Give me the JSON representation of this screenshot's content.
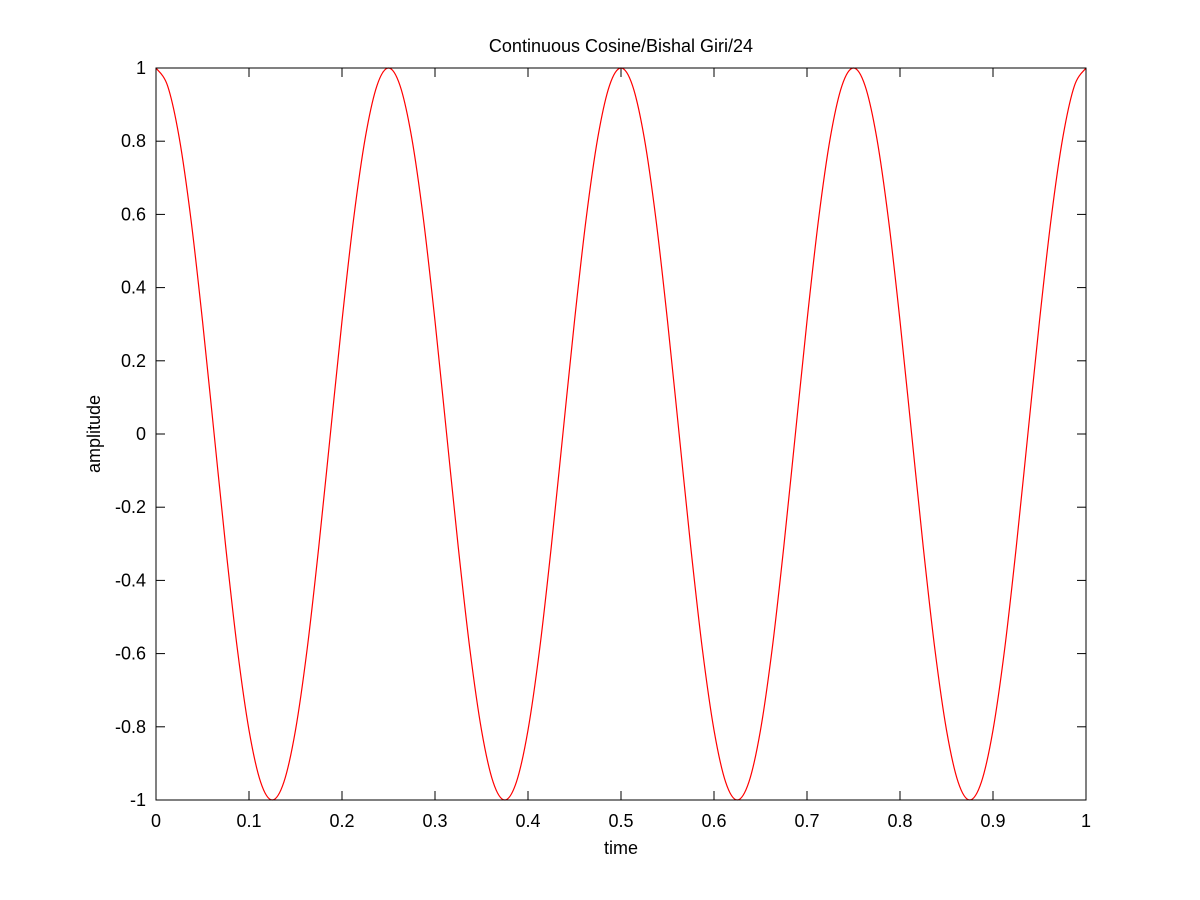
{
  "chart_data": {
    "type": "line",
    "title": "Continuous Cosine/Bishal Giri/24",
    "xlabel": "time",
    "ylabel": "amplitude",
    "xlim": [
      0,
      1
    ],
    "ylim": [
      -1,
      1
    ],
    "xticks": [
      0,
      0.1,
      0.2,
      0.3,
      0.4,
      0.5,
      0.6,
      0.7,
      0.8,
      0.9,
      1
    ],
    "xtick_labels": [
      "0",
      "0.1",
      "0.2",
      "0.3",
      "0.4",
      "0.5",
      "0.6",
      "0.7",
      "0.8",
      "0.9",
      "1"
    ],
    "yticks": [
      -1,
      -0.8,
      -0.6,
      -0.4,
      -0.2,
      0,
      0.2,
      0.4,
      0.6,
      0.8,
      1
    ],
    "ytick_labels": [
      "-1",
      "-0.8",
      "-0.6",
      "-0.4",
      "-0.2",
      "0",
      "0.2",
      "0.4",
      "0.6",
      "0.8",
      "1"
    ],
    "grid": false,
    "legend": "none",
    "series": [
      {
        "color": "#ff0000",
        "x": [
          0,
          0.0125,
          0.025,
          0.0375,
          0.05,
          0.0625,
          0.075,
          0.0875,
          0.1,
          0.1125,
          0.125,
          0.1375,
          0.15,
          0.1625,
          0.175,
          0.1875,
          0.2,
          0.2125,
          0.225,
          0.2375,
          0.25,
          0.2625,
          0.275,
          0.2875,
          0.3,
          0.3125,
          0.325,
          0.3375,
          0.35,
          0.3625,
          0.375,
          0.3875,
          0.4,
          0.4125,
          0.425,
          0.4375,
          0.45,
          0.4625,
          0.475,
          0.4875,
          0.5,
          0.5125,
          0.525,
          0.5375,
          0.55,
          0.5625,
          0.575,
          0.5875,
          0.6,
          0.6125,
          0.625,
          0.6375,
          0.65,
          0.6625,
          0.675,
          0.6875,
          0.7,
          0.7125,
          0.725,
          0.7375,
          0.75,
          0.7625,
          0.775,
          0.7875,
          0.8,
          0.8125,
          0.825,
          0.8375,
          0.85,
          0.8625,
          0.875,
          0.8875,
          0.9,
          0.9125,
          0.925,
          0.9375,
          0.95,
          0.9625,
          0.975,
          0.9875,
          1
        ],
        "y": [
          1,
          0.951,
          0.809,
          0.588,
          0.309,
          0,
          -0.309,
          -0.588,
          -0.809,
          -0.951,
          -1,
          -0.951,
          -0.809,
          -0.588,
          -0.309,
          0,
          0.309,
          0.588,
          0.809,
          0.951,
          1,
          0.951,
          0.809,
          0.588,
          0.309,
          0,
          -0.309,
          -0.588,
          -0.809,
          -0.951,
          -1,
          -0.951,
          -0.809,
          -0.588,
          -0.309,
          0,
          0.309,
          0.588,
          0.809,
          0.951,
          1,
          0.951,
          0.809,
          0.588,
          0.309,
          0,
          -0.309,
          -0.588,
          -0.809,
          -0.951,
          -1,
          -0.951,
          -0.809,
          -0.588,
          -0.309,
          0,
          0.309,
          0.588,
          0.809,
          0.951,
          1,
          0.951,
          0.809,
          0.588,
          0.309,
          0,
          -0.309,
          -0.588,
          -0.809,
          -0.951,
          -1,
          -0.951,
          -0.809,
          -0.588,
          -0.309,
          0,
          0.309,
          0.588,
          0.809,
          0.951,
          1
        ]
      }
    ]
  }
}
